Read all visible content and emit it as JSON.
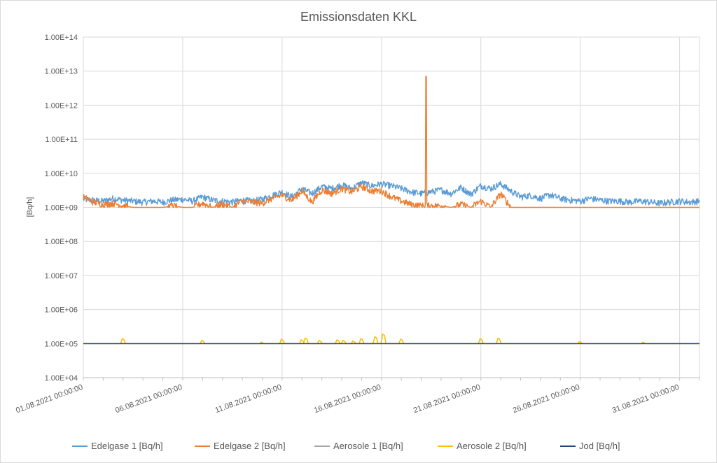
{
  "chart_data": {
    "type": "line",
    "title": "Emissionsdaten KKL",
    "ylabel": "[Bq/h]",
    "xlabel": "",
    "y_scale": "log",
    "ylim": [
      10000,
      100000000000000
    ],
    "y_tick_labels": [
      "1.00E+04",
      "1.00E+05",
      "1.00E+06",
      "1.00E+07",
      "1.00E+08",
      "1.00E+09",
      "1.00E+10",
      "1.00E+11",
      "1.00E+12",
      "1.00E+13",
      "1.00E+14"
    ],
    "y_ticks": [
      10000,
      100000,
      1000000,
      10000000,
      100000000,
      1000000000,
      10000000000,
      100000000000,
      1000000000000,
      10000000000000,
      100000000000000
    ],
    "x_start": "01.08.2021 00:00:00",
    "x_tick_labels": [
      "01.08.2021 00:00:00",
      "06.08.2021 00:00:00",
      "11.08.2021 00:00:00",
      "16.08.2021 00:00:00",
      "21.08.2021 00:00:00",
      "26.08.2021 00:00:00",
      "31.08.2021 00:00:00"
    ],
    "x_tick_days": [
      0,
      5,
      10,
      15,
      20,
      25,
      30
    ],
    "x_range_days": [
      0,
      31
    ],
    "grid": true,
    "legend_position": "bottom",
    "series": [
      {
        "name": "Edelgase 1 [Bq/h]",
        "color": "#5B9BD5",
        "x": [
          0,
          0.5,
          1,
          1.5,
          2,
          2.5,
          3,
          3.5,
          4,
          4.5,
          5,
          5.5,
          6,
          6.5,
          7,
          7.5,
          8,
          8.5,
          9,
          9.5,
          10,
          10.5,
          11,
          11.5,
          12,
          12.5,
          13,
          13.5,
          14,
          14.5,
          15,
          15.5,
          16,
          16.5,
          17,
          17.5,
          18,
          18.5,
          19,
          19.5,
          20,
          20.5,
          21,
          21.5,
          22,
          22.5,
          23,
          23.5,
          24,
          24.5,
          25,
          25.5,
          26,
          26.5,
          27,
          27.5,
          28,
          28.5,
          29,
          29.5,
          30,
          30.5,
          31
        ],
        "values": [
          1700000000,
          1600000000,
          1500000000,
          1800000000,
          1600000000,
          1500000000,
          1400000000,
          1500000000,
          1400000000,
          1600000000,
          1700000000,
          1500000000,
          2000000000,
          1600000000,
          1500000000,
          1400000000,
          1600000000,
          1500000000,
          1700000000,
          2200000000,
          2800000000,
          2000000000,
          3500000000,
          2500000000,
          4000000000,
          3500000000,
          4500000000,
          3500000000,
          5200000000,
          4200000000,
          4800000000,
          4200000000,
          3500000000,
          2800000000,
          2500000000,
          2800000000,
          3200000000,
          2500000000,
          3800000000,
          2400000000,
          4300000000,
          3500000000,
          4800000000,
          3000000000,
          2000000000,
          2200000000,
          1800000000,
          2300000000,
          1800000000,
          1600000000,
          1500000000,
          1800000000,
          1600000000,
          1500000000,
          1500000000,
          1400000000,
          1500000000,
          1400000000,
          1300000000,
          1400000000,
          1500000000,
          1400000000,
          1500000000
        ]
      },
      {
        "name": "Edelgase 2 [Bq/h]",
        "color": "#ED7D31",
        "x": [
          0,
          0.5,
          1,
          1.5,
          2,
          2.5,
          3,
          3.5,
          4,
          4.5,
          5,
          5.5,
          6,
          6.5,
          7,
          7.5,
          8,
          8.5,
          9,
          9.5,
          10,
          10.5,
          11,
          11.5,
          12,
          12.5,
          13,
          13.5,
          14,
          14.5,
          15,
          15.5,
          16,
          16.5,
          17,
          17.5,
          18,
          18.5,
          19,
          19.5,
          20,
          20.5,
          21,
          21.5,
          22,
          22.5,
          23,
          23.5,
          24,
          24.5,
          25,
          25.5,
          26,
          26.5,
          27,
          27.5,
          28,
          28.5,
          29,
          29.5,
          30,
          30.5,
          31
        ],
        "values": [
          2000000000,
          1400000000,
          1200000000,
          1300000000,
          1100000000,
          1000000000,
          1000000000,
          1000000000,
          1000000000,
          1100000000,
          1000000000,
          1000000000,
          1300000000,
          1000000000,
          1200000000,
          1000000000,
          1500000000,
          1400000000,
          1300000000,
          1800000000,
          2200000000,
          1600000000,
          3000000000,
          1400000000,
          3200000000,
          2500000000,
          3500000000,
          2800000000,
          4000000000,
          3000000000,
          3000000000,
          2000000000,
          1500000000,
          1200000000,
          1100000000,
          1100000000,
          1100000000,
          1000000000,
          1200000000,
          1000000000,
          1500000000,
          1000000000,
          2500000000,
          1000000000,
          1000000000,
          1000000000,
          1000000000,
          1000000000,
          1000000000,
          1000000000,
          1000000000,
          1000000000,
          1000000000,
          1000000000,
          1000000000,
          1000000000,
          1000000000,
          1000000000,
          1000000000,
          1000000000,
          1000000000,
          1000000000,
          1000000000
        ],
        "spike": {
          "x": 17.25,
          "value": 7000000000000
        }
      },
      {
        "name": "Aerosole 1 [Bq/h]",
        "color": "#A5A5A5",
        "x": [
          0,
          31
        ],
        "values": [
          100000,
          100000
        ]
      },
      {
        "name": "Aerosole 2 [Bq/h]",
        "color": "#FFC000",
        "x": [
          0,
          31
        ],
        "values": [
          100000,
          100000
        ],
        "bumps": [
          {
            "x": 2.0,
            "value": 140000
          },
          {
            "x": 6.0,
            "value": 125000
          },
          {
            "x": 9.0,
            "value": 110000
          },
          {
            "x": 10.0,
            "value": 135000
          },
          {
            "x": 11.0,
            "value": 130000
          },
          {
            "x": 11.2,
            "value": 145000
          },
          {
            "x": 11.9,
            "value": 125000
          },
          {
            "x": 12.8,
            "value": 130000
          },
          {
            "x": 13.1,
            "value": 125000
          },
          {
            "x": 13.6,
            "value": 120000
          },
          {
            "x": 14.0,
            "value": 140000
          },
          {
            "x": 14.7,
            "value": 160000
          },
          {
            "x": 15.1,
            "value": 190000
          },
          {
            "x": 16.0,
            "value": 135000
          },
          {
            "x": 20.0,
            "value": 140000
          },
          {
            "x": 20.9,
            "value": 145000
          },
          {
            "x": 25.0,
            "value": 115000
          },
          {
            "x": 28.2,
            "value": 110000
          }
        ]
      },
      {
        "name": "Jod [Bq/h]",
        "color": "#264478",
        "x": [
          0,
          31
        ],
        "values": [
          100000,
          100000
        ]
      }
    ]
  }
}
